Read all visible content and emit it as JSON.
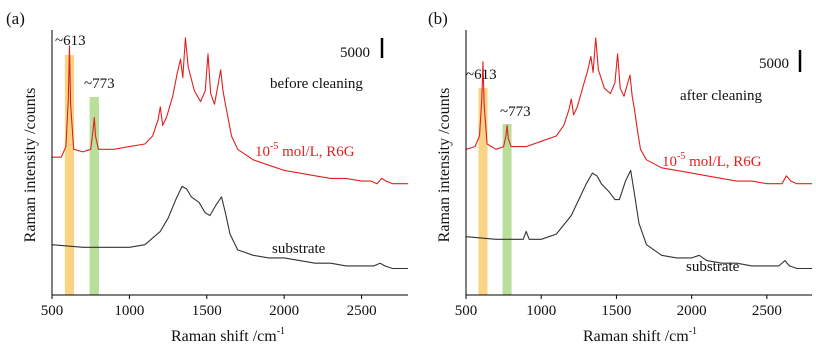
{
  "chart_data": [
    {
      "panel": "(a)",
      "type": "line",
      "xlabel": "Raman shift /cm",
      "xlabel_sup": "-1",
      "ylabel": "Raman intensity /counts",
      "xlim": [
        500,
        2800
      ],
      "xticks": [
        "500",
        "1000",
        "1500",
        "2000",
        "2500"
      ],
      "scale_bar_label": "5000",
      "condition_label": "before cleaning",
      "highlight_bands": [
        {
          "label": "~613",
          "center": 613,
          "width": 60,
          "color": "#f6c250"
        },
        {
          "label": "~773",
          "center": 773,
          "width": 60,
          "color": "#9bd16f"
        }
      ],
      "series": [
        {
          "name": "R6G",
          "label_prefix": "10",
          "label_exp": "-5",
          "label_rest": " mol/L, R6G",
          "color": "#e02020",
          "x": [
            500,
            560,
            590,
            605,
            613,
            620,
            640,
            700,
            750,
            765,
            773,
            781,
            800,
            900,
            1000,
            1100,
            1150,
            1185,
            1200,
            1215,
            1240,
            1280,
            1310,
            1330,
            1345,
            1362,
            1380,
            1420,
            1460,
            1490,
            1508,
            1525,
            1550,
            1575,
            1590,
            1605,
            1620,
            1640,
            1660,
            1700,
            1800,
            1900,
            2000,
            2100,
            2200,
            2300,
            2400,
            2500,
            2560,
            2600,
            2630,
            2660,
            2700,
            2800
          ],
          "y": [
            0.52,
            0.52,
            0.56,
            0.74,
            0.94,
            0.72,
            0.55,
            0.54,
            0.55,
            0.62,
            0.67,
            0.6,
            0.55,
            0.55,
            0.56,
            0.57,
            0.6,
            0.66,
            0.71,
            0.64,
            0.67,
            0.75,
            0.84,
            0.89,
            0.82,
            0.97,
            0.86,
            0.77,
            0.73,
            0.77,
            0.91,
            0.76,
            0.72,
            0.8,
            0.85,
            0.77,
            0.72,
            0.66,
            0.6,
            0.55,
            0.51,
            0.49,
            0.47,
            0.46,
            0.45,
            0.44,
            0.44,
            0.43,
            0.43,
            0.42,
            0.44,
            0.43,
            0.42,
            0.42
          ]
        },
        {
          "name": "substrate",
          "color": "#333333",
          "x": [
            500,
            700,
            900,
            1000,
            1100,
            1200,
            1250,
            1300,
            1340,
            1370,
            1400,
            1450,
            1490,
            1520,
            1560,
            1595,
            1620,
            1650,
            1700,
            1800,
            1900,
            2000,
            2100,
            2200,
            2300,
            2400,
            2500,
            2580,
            2620,
            2650,
            2700,
            2800
          ],
          "y": [
            0.19,
            0.18,
            0.18,
            0.18,
            0.19,
            0.24,
            0.29,
            0.36,
            0.41,
            0.4,
            0.37,
            0.35,
            0.31,
            0.3,
            0.34,
            0.37,
            0.31,
            0.23,
            0.17,
            0.15,
            0.14,
            0.14,
            0.13,
            0.12,
            0.12,
            0.11,
            0.11,
            0.11,
            0.12,
            0.11,
            0.1,
            0.1
          ]
        }
      ]
    },
    {
      "panel": "(b)",
      "type": "line",
      "xlabel": "Raman shift /cm",
      "xlabel_sup": "-1",
      "ylabel": "Raman intensity /counts",
      "xlim": [
        500,
        2800
      ],
      "xticks": [
        "500",
        "1000",
        "1500",
        "2000",
        "2500"
      ],
      "scale_bar_label": "5000",
      "condition_label": "after cleaning",
      "highlight_bands": [
        {
          "label": "~613",
          "center": 613,
          "width": 60,
          "color": "#f6c250"
        },
        {
          "label": "~773",
          "center": 773,
          "width": 60,
          "color": "#9bd16f"
        }
      ],
      "series": [
        {
          "name": "R6G",
          "label_prefix": "10",
          "label_exp": "-5",
          "label_rest": " mol/L, R6G",
          "color": "#e02020",
          "x": [
            500,
            560,
            590,
            605,
            613,
            620,
            640,
            700,
            750,
            765,
            773,
            781,
            800,
            900,
            1000,
            1100,
            1150,
            1185,
            1200,
            1215,
            1240,
            1280,
            1310,
            1330,
            1345,
            1362,
            1380,
            1420,
            1460,
            1490,
            1508,
            1525,
            1550,
            1575,
            1590,
            1605,
            1620,
            1640,
            1660,
            1700,
            1800,
            1900,
            2000,
            2100,
            2200,
            2300,
            2400,
            2500,
            2560,
            2600,
            2630,
            2660,
            2700,
            2800
          ],
          "y": [
            0.55,
            0.56,
            0.6,
            0.74,
            0.88,
            0.72,
            0.57,
            0.55,
            0.56,
            0.6,
            0.64,
            0.59,
            0.56,
            0.56,
            0.58,
            0.6,
            0.64,
            0.7,
            0.74,
            0.68,
            0.71,
            0.79,
            0.85,
            0.9,
            0.84,
            0.97,
            0.85,
            0.78,
            0.76,
            0.8,
            0.91,
            0.78,
            0.75,
            0.8,
            0.83,
            0.75,
            0.7,
            0.62,
            0.55,
            0.51,
            0.48,
            0.47,
            0.46,
            0.45,
            0.44,
            0.43,
            0.43,
            0.42,
            0.42,
            0.42,
            0.45,
            0.43,
            0.42,
            0.42
          ]
        },
        {
          "name": "substrate",
          "color": "#333333",
          "x": [
            500,
            700,
            880,
            900,
            920,
            1000,
            1100,
            1200,
            1250,
            1300,
            1340,
            1370,
            1400,
            1450,
            1490,
            1520,
            1560,
            1595,
            1620,
            1650,
            1700,
            1800,
            1900,
            2000,
            2050,
            2100,
            2200,
            2300,
            2400,
            2500,
            2580,
            2620,
            2650,
            2700,
            2800
          ],
          "y": [
            0.22,
            0.21,
            0.21,
            0.24,
            0.21,
            0.21,
            0.23,
            0.3,
            0.36,
            0.42,
            0.46,
            0.45,
            0.42,
            0.39,
            0.36,
            0.36,
            0.43,
            0.47,
            0.38,
            0.27,
            0.19,
            0.15,
            0.14,
            0.14,
            0.15,
            0.13,
            0.12,
            0.12,
            0.11,
            0.11,
            0.11,
            0.13,
            0.11,
            0.1,
            0.1
          ]
        }
      ]
    }
  ]
}
